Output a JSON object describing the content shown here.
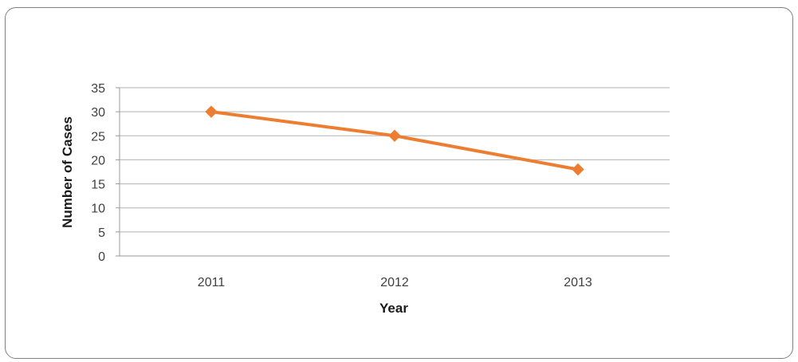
{
  "chart_data": {
    "type": "line",
    "title": "",
    "xlabel": "Year",
    "ylabel": "Number of Cases",
    "categories": [
      "2011",
      "2012",
      "2013"
    ],
    "series": [
      {
        "values": [
          30,
          25,
          18
        ],
        "color": "#ed7d31",
        "marker": "diamond"
      }
    ],
    "ylim": [
      0,
      35
    ],
    "yticks": [
      0,
      5,
      10,
      15,
      20,
      25,
      30,
      35
    ],
    "grid": true,
    "legend": "none"
  }
}
